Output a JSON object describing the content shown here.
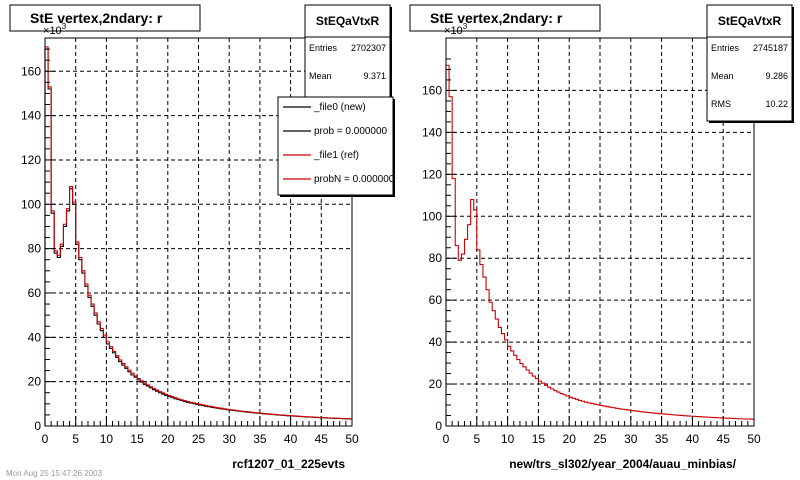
{
  "footer": "Mon Aug 25 15:47:26 2003",
  "chart_data": [
    {
      "type": "histogram",
      "title": "StE  vertex,2ndary: r",
      "xlabel": "rcf1207_01_225evts",
      "ylabel": "",
      "y_multiplier": "10",
      "y_multiplier_exp": "3",
      "xlim": [
        0,
        50
      ],
      "ylim": [
        0,
        175
      ],
      "x_ticks": [
        "0",
        "5",
        "10",
        "15",
        "20",
        "25",
        "30",
        "35",
        "40",
        "45",
        "50"
      ],
      "y_ticks": [
        "0",
        "20",
        "40",
        "60",
        "80",
        "100",
        "120",
        "140",
        "160"
      ],
      "grid": true,
      "bin_width": 0.5,
      "stats": {
        "name": "StEQaVtxR",
        "rows": [
          {
            "label": "Entries",
            "value": "2702307"
          },
          {
            "label": "Mean",
            "value": "9.371"
          }
        ]
      },
      "legend": {
        "placement": "top-right",
        "entries": [
          {
            "label": "_file0 (new)",
            "color": "#000000"
          },
          {
            "label": "prob = 0.000000",
            "color": "#000000"
          },
          {
            "label": "_file1 (ref)",
            "color": "#cc0000"
          },
          {
            "label": "probN = 0.000000",
            "color": "#cc0000"
          }
        ]
      },
      "series": [
        {
          "name": "_file0 (new)",
          "color": "#000000",
          "values": [
            170,
            152,
            96,
            78,
            76,
            81,
            90,
            97,
            107,
            100,
            82,
            75,
            69,
            63,
            58,
            54,
            50,
            46,
            43,
            40,
            37,
            35,
            33,
            31,
            29,
            27.5,
            26,
            24.5,
            23,
            22,
            20.8,
            19.8,
            18.8,
            18,
            17.2,
            16.4,
            15.7,
            15,
            14.4,
            13.8,
            13.3,
            12.8,
            12.3,
            11.9,
            11.5,
            11.1,
            10.7,
            10.4,
            10.1,
            9.8,
            9.5,
            9.2,
            8.95,
            8.7,
            8.45,
            8.2,
            7.98,
            7.77,
            7.56,
            7.37,
            7.18,
            7,
            6.82,
            6.65,
            6.49,
            6.33,
            6.18,
            6.03,
            5.89,
            5.76,
            5.62,
            5.5,
            5.37,
            5.25,
            5.14,
            5.02,
            4.92,
            4.81,
            4.71,
            4.61,
            4.52,
            4.43,
            4.34,
            4.25,
            4.17,
            4.09,
            4.01,
            3.93,
            3.86,
            3.79,
            3.72,
            3.65,
            3.59,
            3.52,
            3.46,
            3.4,
            3.34,
            3.29,
            3.23,
            3.18
          ]
        },
        {
          "name": "_file1 (ref)",
          "color": "#cc0000",
          "values": [
            171,
            153,
            97,
            79,
            77,
            82,
            91,
            98,
            108,
            101,
            83,
            76,
            70,
            64,
            59,
            55,
            51,
            47,
            44,
            41,
            38,
            35.8,
            33.7,
            31.7,
            29.8,
            28.2,
            26.7,
            25.2,
            23.8,
            22.6,
            21.4,
            20.4,
            19.4,
            18.5,
            17.7,
            16.9,
            16.2,
            15.5,
            14.9,
            14.3,
            13.7,
            13.2,
            12.7,
            12.2,
            11.8,
            11.4,
            11,
            10.7,
            10.4,
            10.1,
            9.8,
            9.5,
            9.2,
            8.95,
            8.7,
            8.45,
            8.2,
            7.98,
            7.77,
            7.56,
            7.37,
            7.18,
            7,
            6.82,
            6.65,
            6.49,
            6.33,
            6.18,
            6.03,
            5.89,
            5.76,
            5.62,
            5.5,
            5.37,
            5.25,
            5.14,
            5.02,
            4.92,
            4.81,
            4.71,
            4.61,
            4.52,
            4.43,
            4.34,
            4.25,
            4.17,
            4.09,
            4.01,
            3.93,
            3.86,
            3.79,
            3.72,
            3.65,
            3.59,
            3.52,
            3.46,
            3.4,
            3.34,
            3.29,
            3.23
          ]
        }
      ]
    },
    {
      "type": "histogram",
      "title": "StE  vertex,2ndary: r",
      "xlabel": "new/trs_sl302/year_2004/auau_minbias/",
      "ylabel": "",
      "y_multiplier": "10",
      "y_multiplier_exp": "3",
      "xlim": [
        0,
        50
      ],
      "ylim": [
        0,
        185
      ],
      "x_ticks": [
        "0",
        "5",
        "10",
        "15",
        "20",
        "25",
        "30",
        "35",
        "40",
        "45",
        "50"
      ],
      "y_ticks": [
        "0",
        "20",
        "40",
        "60",
        "80",
        "100",
        "120",
        "140",
        "160"
      ],
      "grid": true,
      "bin_width": 0.5,
      "stats": {
        "name": "StEQaVtxR",
        "rows": [
          {
            "label": "Entries",
            "value": "2745187"
          },
          {
            "label": "Mean",
            "value": "9.286"
          },
          {
            "label": "RMS",
            "value": "10.22"
          }
        ]
      },
      "legend": null,
      "series": [
        {
          "name": "",
          "color": "#cc0000",
          "values": [
            172,
            157,
            118,
            86,
            79,
            82,
            89,
            96,
            108,
            103,
            84,
            77,
            71,
            65,
            59,
            55,
            51,
            47,
            44,
            41,
            38,
            35.8,
            33.7,
            31.7,
            29.8,
            28.2,
            26.7,
            25.2,
            23.8,
            22.6,
            21.4,
            20.4,
            19.4,
            18.5,
            17.7,
            16.9,
            16.2,
            15.5,
            14.9,
            14.3,
            13.7,
            13.2,
            12.7,
            12.2,
            11.8,
            11.4,
            11,
            10.7,
            10.4,
            10.1,
            9.8,
            9.5,
            9.2,
            8.95,
            8.7,
            8.45,
            8.2,
            7.98,
            7.77,
            7.56,
            7.37,
            7.18,
            7,
            6.82,
            6.65,
            6.49,
            6.33,
            6.18,
            6.03,
            5.89,
            5.76,
            5.62,
            5.5,
            5.37,
            5.25,
            5.14,
            5.02,
            4.92,
            4.81,
            4.71,
            4.61,
            4.52,
            4.43,
            4.34,
            4.25,
            4.17,
            4.09,
            4.01,
            3.93,
            3.86,
            3.79,
            3.72,
            3.65,
            3.59,
            3.52,
            3.46,
            3.4,
            3.34,
            3.29,
            3.23
          ]
        }
      ]
    }
  ]
}
